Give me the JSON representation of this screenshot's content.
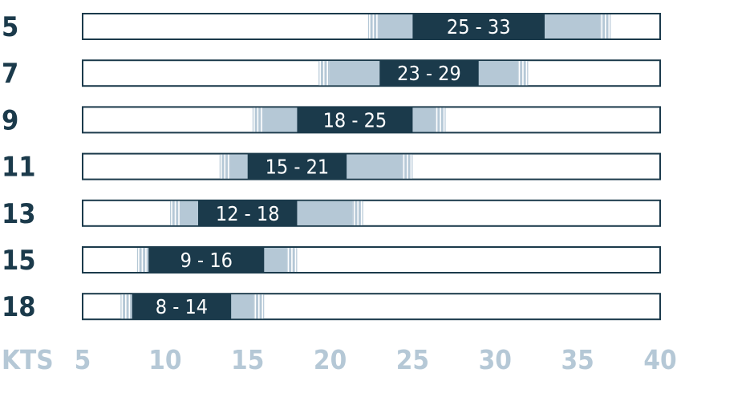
{
  "chart_data": {
    "type": "bar",
    "orientation": "horizontal",
    "title": "",
    "xlabel": "KTS",
    "ylabel": "",
    "xlim": [
      5,
      40
    ],
    "x_ticks": [
      "5",
      "10",
      "15",
      "20",
      "25",
      "30",
      "35",
      "40"
    ],
    "grid": false,
    "rows": [
      {
        "label": "5",
        "range_label": "25 - 33",
        "optimal": [
          25,
          33
        ],
        "extended": [
          22.3,
          37.0
        ]
      },
      {
        "label": "7",
        "range_label": "23 - 29",
        "optimal": [
          23,
          29
        ],
        "extended": [
          19.3,
          32.0
        ]
      },
      {
        "label": "9",
        "range_label": "18 - 25",
        "optimal": [
          18,
          25
        ],
        "extended": [
          15.3,
          27.0
        ]
      },
      {
        "label": "11",
        "range_label": "15 - 21",
        "optimal": [
          15,
          21
        ],
        "extended": [
          13.3,
          25.0
        ]
      },
      {
        "label": "13",
        "range_label": "12 - 18",
        "optimal": [
          12,
          18
        ],
        "extended": [
          10.3,
          22.0
        ]
      },
      {
        "label": "15",
        "range_label": "9 - 16",
        "optimal": [
          9,
          16
        ],
        "extended": [
          8.3,
          18.0
        ]
      },
      {
        "label": "18",
        "range_label": "8 - 14",
        "optimal": [
          8,
          14
        ],
        "extended": [
          7.3,
          16.0
        ]
      }
    ],
    "colors": {
      "optimal": "#1b3a4b",
      "extended": "#b5c8d6",
      "row_label": "#1b3a4b",
      "tick_label": "#b5c8d6",
      "track_border": "#1b3a4b"
    }
  }
}
